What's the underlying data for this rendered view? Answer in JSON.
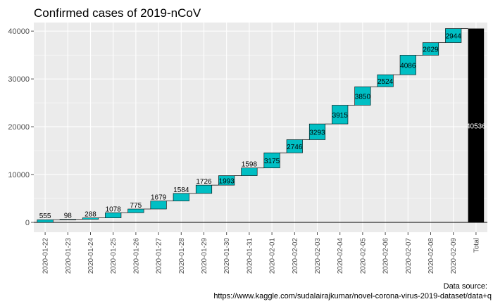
{
  "chart_data": {
    "type": "waterfall",
    "title": "Confirmed cases of 2019-nCoV",
    "xlabel": "",
    "ylabel": "",
    "ylim": [
      0,
      41500
    ],
    "yticks": [
      0,
      10000,
      20000,
      30000,
      40000
    ],
    "grid": true,
    "legend": "none",
    "categories": [
      "2020-01-22",
      "2020-01-23",
      "2020-01-24",
      "2020-01-25",
      "2020-01-26",
      "2020-01-27",
      "2020-01-28",
      "2020-01-29",
      "2020-01-30",
      "2020-01-31",
      "2020-02-01",
      "2020-02-02",
      "2020-02-03",
      "2020-02-04",
      "2020-02-05",
      "2020-02-06",
      "2020-02-07",
      "2020-02-08",
      "2020-02-09"
    ],
    "values": [
      555,
      98,
      288,
      1078,
      775,
      1679,
      1584,
      1726,
      1993,
      1598,
      3175,
      2746,
      3293,
      3915,
      3850,
      2524,
      4086,
      2629,
      2944
    ],
    "total_label": "Total",
    "total_value": 40536,
    "colors": {
      "increase": "#00BFC4",
      "total": "#000000",
      "panel": "#EBEBEB",
      "grid": "#ffffff"
    },
    "caption": [
      "Data source:",
      "https://www.kaggle.com/sudalairajkumar/novel-corona-virus-2019-dataset/data+q"
    ]
  }
}
